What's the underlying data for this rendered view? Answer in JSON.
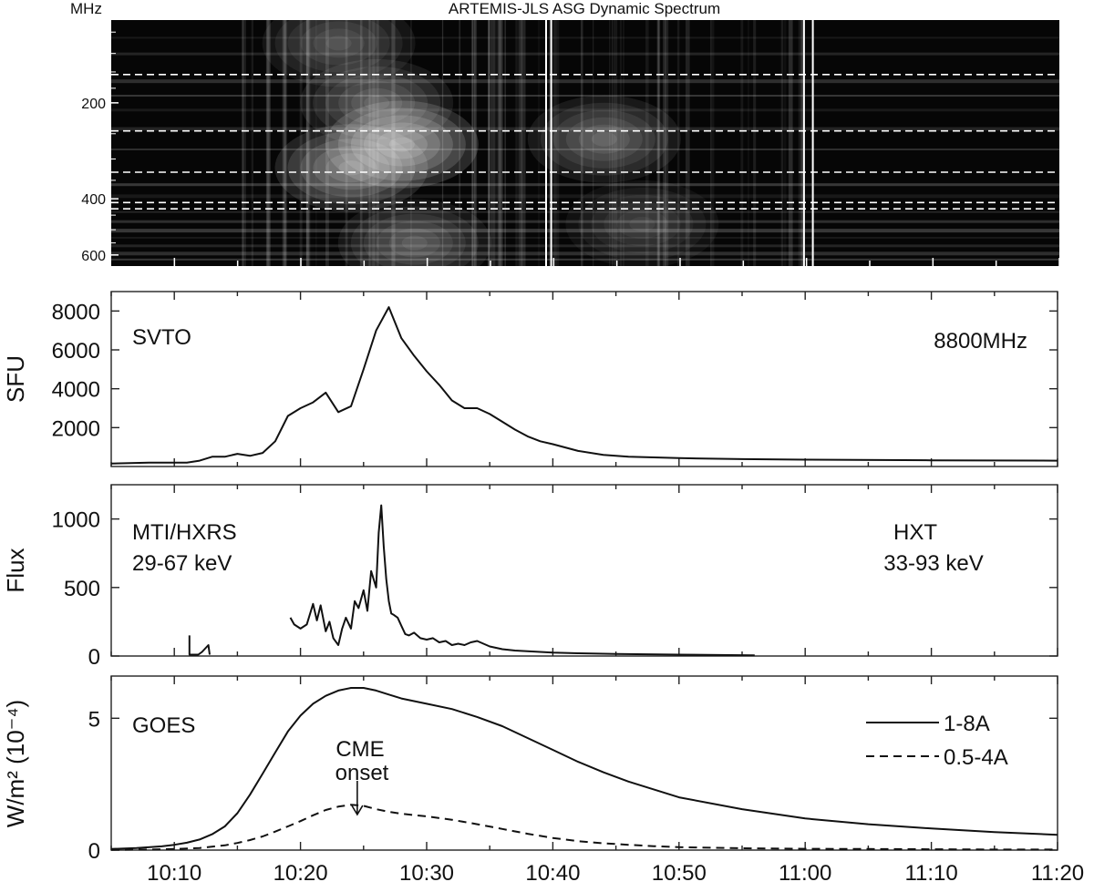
{
  "chart_data": [
    {
      "type": "heatmap",
      "title": "ARTEMIS-JLS ASG Dynamic Spectrum",
      "ylabel": "MHz",
      "y_scale": "log",
      "ylim_mhz": [
        650,
        110
      ],
      "y_ticks": [
        200,
        400,
        600
      ],
      "x_range_min": [
        5,
        120
      ],
      "dashed_lines_mhz": [
        163,
        245,
        330,
        411,
        430
      ],
      "gap_lines_min": [
        39.4,
        39.8,
        59.8,
        60.5
      ],
      "bright_blobs": [
        {
          "t": 28,
          "f": 270,
          "intensity": 1.0
        },
        {
          "t": 24,
          "f": 320,
          "intensity": 0.8
        },
        {
          "t": 26,
          "f": 200,
          "intensity": 0.55
        },
        {
          "t": 23,
          "f": 130,
          "intensity": 0.45
        },
        {
          "t": 29,
          "f": 550,
          "intensity": 0.5
        },
        {
          "t": 44,
          "f": 260,
          "intensity": 0.55
        },
        {
          "t": 47,
          "f": 480,
          "intensity": 0.35
        }
      ]
    },
    {
      "type": "line",
      "ylabel": "SFU",
      "xlim_min": [
        5,
        80
      ],
      "ylim": [
        0,
        9000
      ],
      "y_ticks": [
        "2000",
        "4000",
        "6000",
        "8000"
      ],
      "annotations": [
        "SVTO",
        "8800MHz"
      ],
      "series": [
        {
          "name": "8800MHz",
          "x": [
            5,
            8,
            11,
            12,
            13,
            14,
            15,
            16,
            17,
            18,
            19,
            20,
            21,
            22,
            23,
            24,
            25,
            26,
            27,
            28,
            29,
            30,
            31,
            32,
            33,
            34,
            35,
            36,
            37,
            38,
            39,
            40,
            42,
            44,
            46,
            50,
            55,
            60,
            70,
            80
          ],
          "y": [
            150,
            200,
            200,
            300,
            500,
            500,
            650,
            550,
            700,
            1300,
            2600,
            3000,
            3300,
            3800,
            2800,
            3100,
            5000,
            7000,
            8200,
            6600,
            5700,
            4900,
            4200,
            3400,
            3000,
            3000,
            2700,
            2300,
            1900,
            1550,
            1300,
            1150,
            800,
            600,
            500,
            430,
            380,
            350,
            320,
            300
          ]
        }
      ]
    },
    {
      "type": "line",
      "ylabel": "Flux",
      "xlim_min": [
        5,
        80
      ],
      "ylim": [
        0,
        1250
      ],
      "y_ticks": [
        "0",
        "500",
        "1000"
      ],
      "annotations": [
        "MTI/HXRS",
        "29-67 keV",
        "HXT",
        "33-93 keV"
      ],
      "series": [
        {
          "name": "segment-1",
          "x": [
            11.2,
            11.2,
            11.9,
            12.2,
            12.5,
            12.7,
            12.8
          ],
          "y": [
            150,
            10,
            10,
            30,
            60,
            80,
            10
          ]
        },
        {
          "name": "segment-2",
          "x": [
            19.2,
            19.5,
            20.0,
            20.5,
            21.0,
            21.3,
            21.6,
            22.0,
            22.3,
            22.6,
            23.0,
            23.3,
            23.6,
            24.0,
            24.3,
            24.6,
            25.0,
            25.3,
            25.6,
            26.0,
            26.2,
            26.4,
            26.6,
            26.8,
            27.0,
            27.2,
            27.4,
            27.7,
            28.0,
            28.3,
            28.6,
            29.0,
            29.5,
            30.0,
            30.5,
            31.0,
            31.5,
            32.0,
            32.5,
            33.0,
            33.5,
            34.0,
            34.5,
            35.0,
            36.0,
            37.0,
            38.0,
            40.0,
            42.0,
            45.0,
            50.0,
            56.0
          ],
          "y": [
            280,
            230,
            200,
            230,
            380,
            260,
            370,
            180,
            250,
            130,
            80,
            200,
            280,
            200,
            400,
            350,
            480,
            330,
            620,
            500,
            900,
            1100,
            800,
            560,
            400,
            310,
            300,
            280,
            220,
            160,
            150,
            170,
            130,
            120,
            130,
            100,
            110,
            80,
            90,
            80,
            100,
            110,
            90,
            70,
            50,
            40,
            35,
            25,
            20,
            15,
            10,
            5
          ]
        }
      ]
    },
    {
      "type": "line",
      "ylabel": "W/m² (10⁻⁴)",
      "xlim_min": [
        5,
        80
      ],
      "ylim": [
        0,
        6.6
      ],
      "y_ticks": [
        "0",
        "5"
      ],
      "x_tick_labels": [
        "10:10",
        "10:20",
        "10:30",
        "10:40",
        "10:50",
        "11:00",
        "11:10",
        "11:20"
      ],
      "x_ticks_min": [
        10,
        20,
        30,
        40,
        50,
        60,
        70,
        80
      ],
      "annotations": [
        "GOES",
        "CME",
        "onset"
      ],
      "cme_onset_min": 24.5,
      "legend": [
        "1-8A",
        "0.5-4A"
      ],
      "series": [
        {
          "name": "1-8A",
          "x": [
            5,
            7,
            9,
            10,
            11,
            12,
            13,
            14,
            15,
            16,
            17,
            18,
            19,
            20,
            21,
            22,
            23,
            24,
            25,
            26,
            27,
            28,
            30,
            32,
            34,
            36,
            38,
            40,
            42,
            44,
            46,
            48,
            50,
            55,
            60,
            65,
            70,
            75,
            80
          ],
          "y": [
            0.04,
            0.08,
            0.14,
            0.2,
            0.28,
            0.4,
            0.6,
            0.9,
            1.4,
            2.1,
            2.9,
            3.7,
            4.5,
            5.1,
            5.55,
            5.85,
            6.05,
            6.15,
            6.15,
            6.05,
            5.9,
            5.75,
            5.55,
            5.35,
            5.05,
            4.7,
            4.25,
            3.8,
            3.35,
            2.95,
            2.6,
            2.3,
            2.0,
            1.55,
            1.2,
            0.98,
            0.82,
            0.68,
            0.58
          ]
        },
        {
          "name": "0.5-4A",
          "x": [
            5,
            8,
            10,
            12,
            14,
            15,
            16,
            17,
            18,
            19,
            20,
            21,
            22,
            23,
            24,
            25,
            26,
            27,
            28,
            30,
            32,
            34,
            36,
            38,
            40,
            42,
            44,
            46,
            48,
            50,
            55,
            60,
            65,
            70,
            75,
            80
          ],
          "y": [
            0.01,
            0.02,
            0.04,
            0.08,
            0.18,
            0.27,
            0.38,
            0.52,
            0.7,
            0.9,
            1.1,
            1.32,
            1.52,
            1.65,
            1.72,
            1.68,
            1.55,
            1.45,
            1.38,
            1.28,
            1.15,
            0.98,
            0.8,
            0.62,
            0.46,
            0.34,
            0.26,
            0.2,
            0.15,
            0.11,
            0.07,
            0.05,
            0.04,
            0.03,
            0.02,
            0.02
          ]
        }
      ]
    }
  ]
}
